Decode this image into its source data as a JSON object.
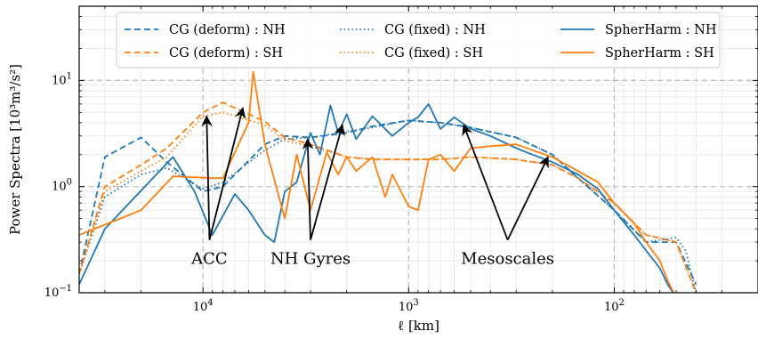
{
  "chart_data": {
    "type": "line",
    "xlabel": "ℓ [km]",
    "ylabel": "Power Spectra [10³m³/s²]",
    "x_axis": {
      "scale": "log",
      "reversed": true,
      "lim": [
        40000,
        20
      ],
      "tick_labels": [
        {
          "value": 10000,
          "base": "10",
          "exp": "4"
        },
        {
          "value": 1000,
          "base": "10",
          "exp": "3"
        },
        {
          "value": 100,
          "base": "10",
          "exp": "2"
        }
      ]
    },
    "y_axis": {
      "scale": "log",
      "lim": [
        0.1,
        50
      ],
      "tick_labels": [
        {
          "value": 0.1,
          "base": "10",
          "exp": "−1"
        },
        {
          "value": 1,
          "base": "10",
          "exp": "0"
        },
        {
          "value": 10,
          "base": "10",
          "exp": "1"
        }
      ]
    },
    "grid": true,
    "legend_position": "top",
    "colors": {
      "NH": "#1f77b4",
      "SH": "#ff7f0e"
    },
    "series": [
      {
        "name": "CG (deform) : NH",
        "color": "#1f77b4",
        "style": "dashed",
        "x": [
          40000,
          30000,
          20000,
          15000,
          10000,
          8000,
          5000,
          4000,
          3000,
          2000,
          1500,
          1000,
          700,
          500,
          300,
          200,
          150,
          100,
          70,
          50,
          40
        ],
        "y": [
          0.15,
          1.9,
          2.9,
          1.7,
          0.9,
          1.0,
          2.5,
          3.0,
          2.9,
          3.2,
          3.7,
          4.2,
          4.0,
          3.6,
          2.9,
          2.0,
          1.2,
          0.6,
          0.3,
          0.3,
          0.12
        ]
      },
      {
        "name": "CG (deform) : SH",
        "color": "#ff7f0e",
        "style": "dashed",
        "x": [
          40000,
          30000,
          20000,
          15000,
          10000,
          8000,
          5000,
          4000,
          3000,
          2000,
          1500,
          1000,
          700,
          500,
          300,
          200,
          150,
          100,
          70,
          50,
          40
        ],
        "y": [
          0.15,
          1.0,
          1.6,
          2.3,
          5.0,
          6.2,
          4.1,
          2.9,
          2.5,
          1.9,
          1.8,
          1.8,
          1.8,
          1.9,
          1.8,
          1.6,
          1.2,
          0.7,
          0.35,
          0.3,
          0.1
        ]
      },
      {
        "name": "CG (fixed) : NH",
        "color": "#1f77b4",
        "style": "dotted",
        "x": [
          40000,
          30000,
          20000,
          15000,
          10000,
          8000,
          5000,
          4000,
          3000,
          2000,
          1500,
          1000,
          700,
          500,
          300,
          200,
          150,
          100,
          70,
          50,
          45,
          40
        ],
        "y": [
          0.15,
          0.8,
          1.3,
          1.5,
          0.95,
          1.1,
          2.2,
          2.8,
          2.9,
          3.3,
          3.6,
          4.2,
          4.0,
          3.6,
          2.9,
          2.0,
          1.2,
          0.6,
          0.3,
          0.33,
          0.25,
          0.1
        ]
      },
      {
        "name": "CG (fixed) : SH",
        "color": "#ff7f0e",
        "style": "dotted",
        "x": [
          40000,
          30000,
          20000,
          15000,
          10000,
          8000,
          5000,
          4000,
          3000,
          2000,
          1500,
          1000,
          700,
          500,
          300,
          200,
          150,
          100,
          70,
          50,
          40
        ],
        "y": [
          0.15,
          0.9,
          1.4,
          1.9,
          4.6,
          5.0,
          3.8,
          2.7,
          2.4,
          1.9,
          1.8,
          1.8,
          1.8,
          1.9,
          1.8,
          1.6,
          1.2,
          0.7,
          0.35,
          0.3,
          0.1
        ]
      },
      {
        "name": "SpherHarm : NH",
        "color": "#1f77b4",
        "style": "solid",
        "x": [
          40000,
          30000,
          14000,
          11000,
          9000,
          7000,
          6000,
          5000,
          4500,
          4000,
          3500,
          3000,
          2700,
          2400,
          2200,
          2000,
          1800,
          1500,
          1200,
          1000,
          900,
          800,
          700,
          600,
          500,
          400,
          300,
          250,
          200,
          150,
          120,
          100,
          80,
          70,
          60,
          55,
          50
        ],
        "y": [
          0.12,
          0.4,
          1.9,
          0.9,
          0.35,
          0.85,
          0.6,
          0.35,
          0.3,
          0.9,
          1.1,
          3.2,
          2.0,
          5.8,
          3.2,
          4.8,
          2.8,
          4.6,
          3.0,
          4.0,
          4.5,
          6.0,
          3.5,
          4.5,
          3.5,
          3.0,
          2.3,
          2.0,
          1.7,
          1.3,
          0.95,
          0.6,
          0.35,
          0.25,
          0.17,
          0.12,
          0.09
        ]
      },
      {
        "name": "SpherHarm : SH",
        "color": "#ff7f0e",
        "style": "solid",
        "x": [
          40000,
          20000,
          14000,
          9000,
          8000,
          6000,
          5700,
          5000,
          4000,
          3500,
          3000,
          2500,
          2200,
          2000,
          1800,
          1500,
          1300,
          1200,
          1000,
          900,
          800,
          700,
          600,
          500,
          400,
          300,
          250,
          200,
          150,
          120,
          100,
          80,
          70,
          60,
          55,
          50
        ],
        "y": [
          0.35,
          0.6,
          1.25,
          1.2,
          1.2,
          4.0,
          12.0,
          2.5,
          0.5,
          2.0,
          0.6,
          2.1,
          1.3,
          1.9,
          1.4,
          1.9,
          0.8,
          1.3,
          0.65,
          0.6,
          1.8,
          2.0,
          1.4,
          2.3,
          2.4,
          2.5,
          2.2,
          1.9,
          1.4,
          1.1,
          0.7,
          0.45,
          0.3,
          0.2,
          0.13,
          0.09
        ]
      }
    ],
    "annotations": [
      {
        "text": "ACC",
        "at": [
          9300,
          0.24
        ],
        "arrows_to": [
          [
            9600,
            4.6
          ],
          [
            6400,
            5.5
          ]
        ]
      },
      {
        "text": "NH Gyres",
        "at": [
          3000,
          0.24
        ],
        "arrows_to": [
          [
            3100,
            2.8
          ],
          [
            2100,
            3.8
          ]
        ]
      },
      {
        "text": "Mesoscales",
        "at": [
          330,
          0.24
        ],
        "arrows_to": [
          [
            540,
            3.8
          ],
          [
            210,
            1.9
          ]
        ]
      }
    ]
  }
}
